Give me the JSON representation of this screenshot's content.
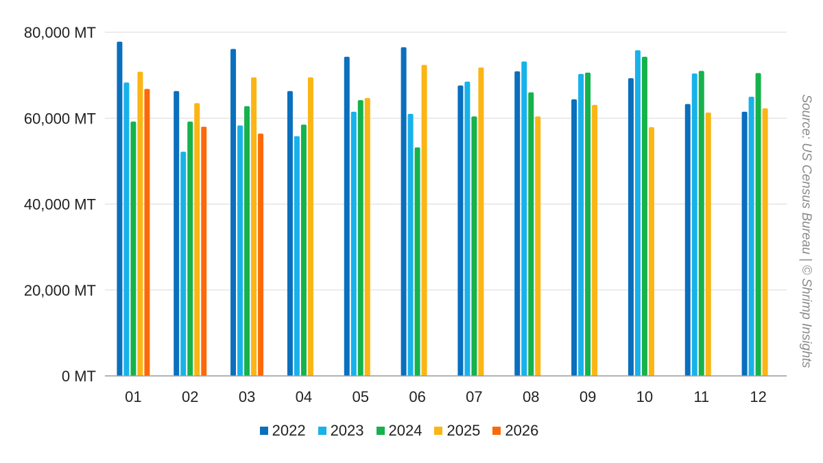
{
  "chart_data": {
    "type": "bar",
    "categories": [
      "01",
      "02",
      "03",
      "04",
      "05",
      "06",
      "07",
      "08",
      "09",
      "10",
      "11",
      "12"
    ],
    "series": [
      {
        "name": "2022",
        "color": "#0a6fbd",
        "values": [
          77800,
          66300,
          76100,
          66300,
          74300,
          76500,
          67600,
          70900,
          64400,
          69300,
          63300,
          61500
        ]
      },
      {
        "name": "2023",
        "color": "#18b2ea",
        "values": [
          68300,
          52200,
          58300,
          55800,
          61500,
          61000,
          68500,
          73200,
          70300,
          75800,
          70400,
          65000
        ]
      },
      {
        "name": "2024",
        "color": "#16b24b",
        "values": [
          59200,
          59200,
          62800,
          58500,
          64200,
          53200,
          60400,
          66000,
          70600,
          74300,
          71000,
          70500
        ]
      },
      {
        "name": "2025",
        "color": "#fbb514",
        "values": [
          70800,
          63500,
          69500,
          69500,
          64700,
          72400,
          71800,
          60400,
          63100,
          57900,
          61300,
          62300
        ]
      },
      {
        "name": "2026",
        "color": "#fb6a09",
        "values": [
          66800,
          58000,
          56400,
          null,
          null,
          null,
          null,
          null,
          null,
          null,
          null,
          null
        ]
      }
    ],
    "y_ticks": [
      "0 MT",
      "20,000 MT",
      "40,000 MT",
      "60,000 MT",
      "80,000 MT"
    ],
    "ylim": [
      0,
      80000
    ],
    "grid": true,
    "legend_position": "bottom"
  },
  "source": "Source: US Census Bureau | © Shrimp Insights"
}
